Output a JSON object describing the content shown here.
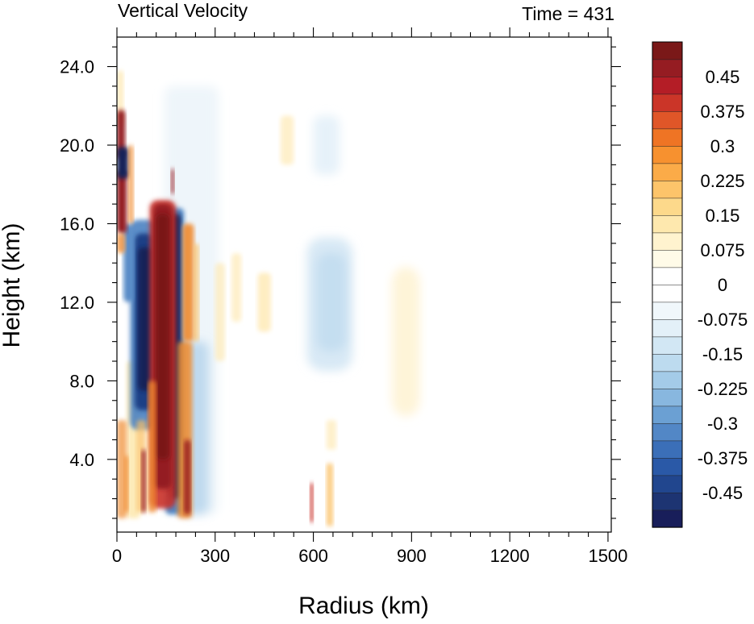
{
  "chart_data": {
    "type": "heatmap",
    "title_left": "Vertical Velocity",
    "title_right": "Time = 431",
    "xlabel": "Radius (km)",
    "ylabel": "Height (km)",
    "xlim": [
      0,
      1510
    ],
    "ylim": [
      0.3,
      25.5
    ],
    "xticks": [
      0,
      300,
      600,
      900,
      1200,
      1500
    ],
    "xtick_labels": [
      "0",
      "300",
      "600",
      "900",
      "1200",
      "1500"
    ],
    "yticks": [
      4,
      8,
      12,
      16,
      20,
      24
    ],
    "ytick_labels": [
      "4.0",
      "8.0",
      "12.0",
      "16.0",
      "20.0",
      "24.0"
    ],
    "colorbar": {
      "levels": [
        -0.525,
        0.525
      ],
      "labels": [
        "0.45",
        "0.375",
        "0.3",
        "0.225",
        "0.15",
        "0.075",
        "0",
        "-0.075",
        "-0.15",
        "-0.225",
        "-0.3",
        "-0.375",
        "-0.45"
      ],
      "label_values": [
        0.45,
        0.375,
        0.3,
        0.225,
        0.15,
        0.075,
        0,
        -0.075,
        -0.15,
        -0.225,
        -0.3,
        -0.375,
        -0.45
      ],
      "colors": [
        "#181e5a",
        "#1d3472",
        "#21468e",
        "#2a59a7",
        "#3b6fb8",
        "#5287c6",
        "#6ba0d3",
        "#88b7df",
        "#a4cbe8",
        "#bddbef",
        "#d2e7f4",
        "#e3f0f8",
        "#f0f7fb",
        "#ffffff",
        "#ffffff",
        "#fffbe8",
        "#fff3cf",
        "#fee8ae",
        "#fdd98b",
        "#fdc46a",
        "#fbab48",
        "#f7912f",
        "#ef7424",
        "#e05628",
        "#cb3528",
        "#b41d26",
        "#951c22",
        "#7a1818"
      ]
    },
    "features": [
      {
        "kind": "updraft",
        "x": [
          95,
          185
        ],
        "y": [
          1.5,
          17.0
        ],
        "w": 0.6,
        "note": "eyewall red band"
      },
      {
        "kind": "downdraft",
        "x": [
          40,
          120
        ],
        "y": [
          6.0,
          16.0
        ],
        "w": -0.6
      },
      {
        "kind": "downdraft",
        "x": [
          150,
          200
        ],
        "y": [
          1.0,
          16.5
        ],
        "w": -0.55
      },
      {
        "kind": "updraft",
        "x": [
          0,
          25
        ],
        "y": [
          19.5,
          21.5
        ],
        "w": 0.6
      },
      {
        "kind": "updraft",
        "x": [
          0,
          25
        ],
        "y": [
          16.0,
          18.5
        ],
        "w": 0.6
      },
      {
        "kind": "downdraft",
        "x": [
          0,
          30
        ],
        "y": [
          18.5,
          19.8
        ],
        "w": -0.45
      },
      {
        "kind": "weak_downdraft",
        "x": [
          590,
          720
        ],
        "y": [
          9.0,
          15.0
        ],
        "w": -0.15
      },
      {
        "kind": "weak_updraft",
        "x": [
          850,
          920
        ],
        "y": [
          6.0,
          13.5
        ],
        "w": 0.1
      },
      {
        "kind": "updraft",
        "x": [
          590,
          600
        ],
        "y": [
          0.8,
          2.8
        ],
        "w": 0.5
      }
    ]
  }
}
